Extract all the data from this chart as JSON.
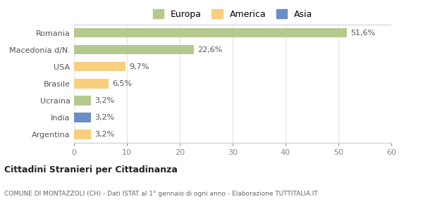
{
  "categories": [
    "Romania",
    "Macedonia d/N.",
    "USA",
    "Brasile",
    "Ucraina",
    "India",
    "Argentina"
  ],
  "values": [
    51.6,
    22.6,
    9.7,
    6.5,
    3.2,
    3.2,
    3.2
  ],
  "colors": [
    "#b5c98e",
    "#b5c98e",
    "#f9cf7e",
    "#f9cf7e",
    "#b5c98e",
    "#6b8fc4",
    "#f9cf7e"
  ],
  "labels": [
    "51,6%",
    "22,6%",
    "9,7%",
    "6,5%",
    "3,2%",
    "3,2%",
    "3,2%"
  ],
  "legend": [
    {
      "label": "Europa",
      "color": "#b5c98e"
    },
    {
      "label": "America",
      "color": "#f9cf7e"
    },
    {
      "label": "Asia",
      "color": "#6b8fc4"
    }
  ],
  "xlim": [
    0,
    60
  ],
  "xticks": [
    0,
    10,
    20,
    30,
    40,
    50,
    60
  ],
  "title": "Cittadini Stranieri per Cittadinanza",
  "subtitle": "COMUNE DI MONTAZZOLI (CH) - Dati ISTAT al 1° gennaio di ogni anno - Elaborazione TUTTITALIA.IT",
  "bg_color": "#ffffff",
  "grid_color": "#e8e8e8",
  "bar_height": 0.55,
  "label_fontsize": 8,
  "ytick_fontsize": 8,
  "xtick_fontsize": 8
}
